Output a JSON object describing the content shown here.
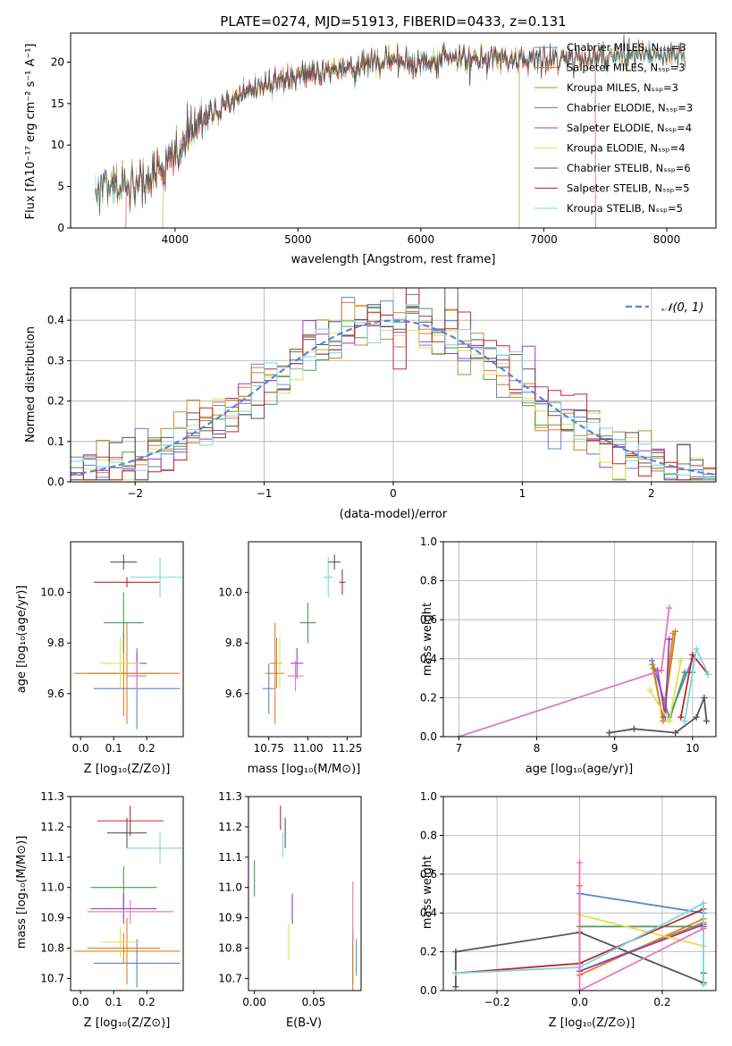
{
  "colors": {
    "series": [
      "#5b84d6",
      "#e37e2a",
      "#c08a1e",
      "#4a9a55",
      "#9a3cc2",
      "#e0e050",
      "#555555",
      "#c0282c",
      "#7ad6e0"
    ],
    "pink": "#e377c2",
    "dash_normal": "#5b84d6",
    "grid": "#b0b0b0"
  },
  "chart_data": [
    {
      "id": "spectrum",
      "type": "line",
      "title": "PLATE=0274, MJD=51913, FIBERID=0433, z=0.131",
      "xlabel": "wavelength [Angstrom, rest frame]",
      "ylabel": "Flux [fλ10⁻¹⁷ erg cm⁻² s⁻¹ A⁻¹]",
      "xlim": [
        3150,
        8400
      ],
      "ylim": [
        0,
        23.5
      ],
      "xticks": [
        4000,
        5000,
        6000,
        7000,
        8000
      ],
      "yticks": [
        0,
        5,
        10,
        15,
        20
      ],
      "legend_position": "top-right",
      "legend": [
        "Chabrier MILES, Nₛₛₚ=3",
        "Salpeter MILES, Nₛₛₚ=3",
        "Kroupa MILES, Nₛₛₚ=3",
        "Chabrier ELODIE, Nₛₛₚ=3",
        "Salpeter ELODIE, Nₛₛₚ=4",
        "Kroupa ELODIE, Nₛₛₚ=4",
        "Chabrier STELIB, Nₛₛₚ=6",
        "Salpeter STELIB, Nₛₛₚ=5",
        "Kroupa STELIB, Nₛₛₚ=5"
      ],
      "spectrum_trend": {
        "x": [
          3350,
          3500,
          3700,
          3800,
          3900,
          4000,
          4100,
          4300,
          4500,
          4800,
          5000,
          5200,
          5500,
          5800,
          6000,
          6200,
          6500,
          6800,
          7000,
          7200,
          7500,
          7800,
          8100
        ],
        "y": [
          4.3,
          5.0,
          5.3,
          6.5,
          7.3,
          8.4,
          11.3,
          13.8,
          15.8,
          17.5,
          18.0,
          18.8,
          19.5,
          20.0,
          19.9,
          20.3,
          20.5,
          20.3,
          20.4,
          20.5,
          20.6,
          20.8,
          20.8
        ]
      },
      "model_ranges": [
        [
          3350,
          8150
        ],
        [
          3350,
          8150
        ],
        [
          3350,
          8150
        ],
        [
          3900,
          6800
        ],
        [
          3900,
          6800
        ],
        [
          3900,
          6800
        ],
        [
          3350,
          8150
        ],
        [
          3600,
          7420
        ],
        [
          3350,
          8150
        ]
      ]
    },
    {
      "id": "residual-histogram",
      "type": "line",
      "xlabel": "(data-model)/error",
      "ylabel": "Normed distribution",
      "xlim": [
        -2.5,
        2.5
      ],
      "ylim": [
        0,
        0.48
      ],
      "xticks": [
        -2,
        -1,
        0,
        1,
        2
      ],
      "xtick_labels": [
        "−2",
        "−1",
        "0",
        "1",
        "2"
      ],
      "yticks": [
        0.0,
        0.1,
        0.2,
        0.3,
        0.4
      ],
      "ytick_labels": [
        "0.0",
        "0.1",
        "0.2",
        "0.3",
        "0.4"
      ],
      "legend": [
        "𝒩(0, 1)"
      ],
      "legend_position": "top-right",
      "bin_width": 0.1,
      "reference_curve": "normal(0,1)"
    },
    {
      "id": "age-vs-Z",
      "type": "scatter",
      "xlabel": "Z [log₁₀(Z/Z⊙)]",
      "ylabel": "age  [log₁₀(age/yr)]",
      "xlim": [
        -0.03,
        0.31
      ],
      "ylim": [
        9.43,
        10.2
      ],
      "xticks": [
        0.0,
        0.1,
        0.2
      ],
      "xtick_labels": [
        "0.0",
        "0.1",
        "0.2"
      ],
      "yticks": [
        9.6,
        9.8,
        10.0
      ],
      "ytick_labels": [
        "9.6",
        "9.8",
        "10.0"
      ],
      "points": [
        {
          "color": 0,
          "x": 0.17,
          "y": 9.62,
          "xerr": 0.13,
          "yerr": 0.16
        },
        {
          "color": 1,
          "x": 0.14,
          "y": 9.68,
          "xerr": 0.16,
          "yerr": 0.2
        },
        {
          "color": 2,
          "x": 0.13,
          "y": 9.68,
          "xerr": 0.11,
          "yerr": 0.17
        },
        {
          "color": 3,
          "x": 0.13,
          "y": 9.88,
          "xerr": 0.06,
          "yerr": 0.12
        },
        {
          "color": 4,
          "x": 0.17,
          "y": 9.72,
          "xerr": 0.03,
          "yerr": 0.04
        },
        {
          "color": 5,
          "x": 0.12,
          "y": 9.72,
          "xerr": 0.06,
          "yerr": 0.1
        },
        {
          "color": 6,
          "x": 0.13,
          "y": 10.12,
          "xerr": 0.04,
          "yerr": 0.03
        },
        {
          "color": 7,
          "x": 0.14,
          "y": 10.04,
          "xerr": 0.1,
          "yerr": 0.02
        },
        {
          "color": 8,
          "x": 0.24,
          "y": 10.06,
          "xerr": 0.09,
          "yerr": 0.08
        },
        {
          "color": "pink",
          "x": 0.17,
          "y": 9.67,
          "xerr": 0.03,
          "yerr": 0.06
        }
      ]
    },
    {
      "id": "age-vs-mass",
      "type": "scatter",
      "xlabel": "mass [log₁₀(M/M⊙)]",
      "xlim": [
        10.62,
        11.34
      ],
      "ylim": [
        9.43,
        10.2
      ],
      "xticks": [
        10.75,
        11.0,
        11.25
      ],
      "xtick_labels": [
        "10.75",
        "11.00",
        "11.25"
      ],
      "yticks": [
        9.6,
        9.8,
        10.0
      ],
      "ytick_labels": [
        "9.6",
        "9.8",
        "10.0"
      ],
      "points": [
        {
          "color": 0,
          "x": 10.75,
          "y": 9.62,
          "xerr": 0.04,
          "yerr": 0.1
        },
        {
          "color": 1,
          "x": 10.79,
          "y": 9.68,
          "xerr": 0.06,
          "yerr": 0.2
        },
        {
          "color": 2,
          "x": 10.8,
          "y": 9.72,
          "xerr": 0.04,
          "yerr": 0.1
        },
        {
          "color": 3,
          "x": 11.0,
          "y": 9.88,
          "xerr": 0.05,
          "yerr": 0.08
        },
        {
          "color": 4,
          "x": 10.93,
          "y": 9.72,
          "xerr": 0.04,
          "yerr": 0.06
        },
        {
          "color": 5,
          "x": 10.82,
          "y": 9.72,
          "xerr": 0.02,
          "yerr": 0.1
        },
        {
          "color": 6,
          "x": 11.17,
          "y": 10.12,
          "xerr": 0.04,
          "yerr": 0.03
        },
        {
          "color": 7,
          "x": 11.22,
          "y": 10.04,
          "xerr": 0.02,
          "yerr": 0.05
        },
        {
          "color": 8,
          "x": 11.13,
          "y": 10.06,
          "xerr": 0.03,
          "yerr": 0.08
        },
        {
          "color": "pink",
          "x": 10.92,
          "y": 9.67,
          "xerr": 0.05,
          "yerr": 0.06
        }
      ]
    },
    {
      "id": "mass-weight-vs-age",
      "type": "line",
      "xlabel": "age  [log₁₀(age/yr)]",
      "ylabel": "mass weight",
      "xlim": [
        6.8,
        10.3
      ],
      "ylim": [
        0,
        1.0
      ],
      "xticks": [
        7,
        8,
        9,
        10
      ],
      "xtick_labels": [
        "7",
        "8",
        "9",
        "10"
      ],
      "yticks": [
        0.0,
        0.2,
        0.4,
        0.6,
        0.8,
        1.0
      ],
      "ytick_labels": [
        "0.0",
        "0.2",
        "0.4",
        "0.6",
        "0.8",
        "1.0"
      ],
      "series": [
        {
          "color": 0,
          "x": [
            9.48,
            9.7,
            10.0
          ],
          "y": [
            0.39,
            0.1,
            0.4
          ]
        },
        {
          "color": 1,
          "x": [
            9.48,
            9.62,
            9.75
          ],
          "y": [
            0.37,
            0.1,
            0.53
          ]
        },
        {
          "color": 2,
          "x": [
            9.5,
            9.62,
            9.78
          ],
          "y": [
            0.35,
            0.08,
            0.54
          ]
        },
        {
          "color": 3,
          "x": [
            9.7,
            9.9,
            10.0
          ],
          "y": [
            0.08,
            0.33,
            0.33
          ]
        },
        {
          "color": 4,
          "x": [
            9.55,
            9.65,
            9.7
          ],
          "y": [
            0.34,
            0.1,
            0.5
          ]
        },
        {
          "color": 5,
          "x": [
            9.45,
            9.7,
            9.85
          ],
          "y": [
            0.24,
            0.08,
            0.39
          ]
        },
        {
          "color": 6,
          "x": [
            8.93,
            9.25,
            9.78,
            10.05,
            10.15,
            10.18
          ],
          "y": [
            0.02,
            0.04,
            0.02,
            0.1,
            0.2,
            0.08
          ]
        },
        {
          "color": 7,
          "x": [
            9.85,
            10.0,
            10.2
          ],
          "y": [
            0.1,
            0.42,
            0.32
          ]
        },
        {
          "color": 8,
          "x": [
            9.9,
            10.05,
            10.2
          ],
          "y": [
            0.08,
            0.45,
            0.32
          ]
        },
        {
          "color": "pink",
          "x": [
            7.0,
            9.6,
            9.7
          ],
          "y": [
            0.0,
            0.34,
            0.66
          ]
        }
      ]
    },
    {
      "id": "mass-vs-Z",
      "type": "scatter",
      "xlabel": "Z [log₁₀(Z/Z⊙)]",
      "ylabel": "mass [log₁₀(M/M⊙)]",
      "xlim": [
        -0.03,
        0.31
      ],
      "ylim": [
        10.66,
        11.3
      ],
      "xticks": [
        0.0,
        0.1,
        0.2
      ],
      "xtick_labels": [
        "0.0",
        "0.1",
        "0.2"
      ],
      "yticks": [
        10.7,
        10.8,
        10.9,
        11.0,
        11.1,
        11.2,
        11.3
      ],
      "ytick_labels": [
        "10.7",
        "10.8",
        "10.9",
        "11.0",
        "11.1",
        "11.2",
        "11.3"
      ],
      "points": [
        {
          "color": 0,
          "x": 0.17,
          "y": 10.75,
          "xerr": 0.13,
          "yerr": 0.08
        },
        {
          "color": 1,
          "x": 0.14,
          "y": 10.79,
          "xerr": 0.16,
          "yerr": 0.11
        },
        {
          "color": 2,
          "x": 0.13,
          "y": 10.8,
          "xerr": 0.11,
          "yerr": 0.05
        },
        {
          "color": 3,
          "x": 0.13,
          "y": 11.0,
          "xerr": 0.1,
          "yerr": 0.07
        },
        {
          "color": 4,
          "x": 0.13,
          "y": 10.93,
          "xerr": 0.1,
          "yerr": 0.05
        },
        {
          "color": 5,
          "x": 0.12,
          "y": 10.82,
          "xerr": 0.06,
          "yerr": 0.05
        },
        {
          "color": 6,
          "x": 0.14,
          "y": 11.18,
          "xerr": 0.06,
          "yerr": 0.05
        },
        {
          "color": 7,
          "x": 0.15,
          "y": 11.22,
          "xerr": 0.1,
          "yerr": 0.05
        },
        {
          "color": 8,
          "x": 0.24,
          "y": 11.13,
          "xerr": 0.1,
          "yerr": 0.05
        },
        {
          "color": "pink",
          "x": 0.15,
          "y": 10.92,
          "xerr": 0.13,
          "yerr": 0.04
        }
      ]
    },
    {
      "id": "mass-vs-EBV",
      "type": "scatter",
      "xlabel": "E(B-V)",
      "xlim": [
        -0.005,
        0.09
      ],
      "ylim": [
        10.66,
        11.3
      ],
      "xticks": [
        0.0,
        0.05
      ],
      "xtick_labels": [
        "0.00",
        "0.05"
      ],
      "yticks": [
        10.7,
        10.8,
        10.9,
        11.0,
        11.1,
        11.2,
        11.3
      ],
      "ytick_labels": [
        "10.7",
        "10.8",
        "10.9",
        "11.0",
        "11.1",
        "11.2",
        "11.3"
      ],
      "points": [
        {
          "color": 0,
          "x": 0.086,
          "y": 10.77,
          "xerr": 0,
          "yerr": 0.06
        },
        {
          "color": 1,
          "x": 0.083,
          "y": 10.75,
          "xerr": 0,
          "yerr": 0.09
        },
        {
          "color": 2,
          "x": 0.083,
          "y": 10.77,
          "xerr": 0,
          "yerr": 0.09
        },
        {
          "color": 3,
          "x": 0.0,
          "y": 11.03,
          "xerr": 0,
          "yerr": 0.06
        },
        {
          "color": 4,
          "x": 0.032,
          "y": 10.93,
          "xerr": 0,
          "yerr": 0.05
        },
        {
          "color": 5,
          "x": 0.029,
          "y": 10.82,
          "xerr": 0,
          "yerr": 0.06
        },
        {
          "color": 6,
          "x": 0.026,
          "y": 11.18,
          "xerr": 0,
          "yerr": 0.05
        },
        {
          "color": 7,
          "x": 0.022,
          "y": 11.23,
          "xerr": 0,
          "yerr": 0.04
        },
        {
          "color": 8,
          "x": 0.024,
          "y": 11.14,
          "xerr": 0,
          "yerr": 0.04
        },
        {
          "color": "pink",
          "x": 0.083,
          "y": 10.92,
          "xerr": 0,
          "yerr": 0.1
        }
      ]
    },
    {
      "id": "mass-weight-vs-Z",
      "type": "line",
      "xlabel": "Z [log₁₀(Z/Z⊙)]",
      "ylabel": "mass weight",
      "xlim": [
        -0.33,
        0.33
      ],
      "ylim": [
        0,
        1.0
      ],
      "xticks": [
        -0.2,
        0.0,
        0.2
      ],
      "xtick_labels": [
        "−0.2",
        "0.0",
        "0.2"
      ],
      "yticks": [
        0.0,
        0.2,
        0.4,
        0.6,
        0.8,
        1.0
      ],
      "ytick_labels": [
        "0.0",
        "0.2",
        "0.4",
        "0.6",
        "0.8",
        "1.0"
      ],
      "series": [
        {
          "color": 0,
          "x": [
            0.0,
            0.3
          ],
          "y": [
            0.5,
            0.4
          ]
        },
        {
          "color": 1,
          "x": [
            0.0,
            0.0,
            0.3
          ],
          "y": [
            0.54,
            0.08,
            0.37
          ]
        },
        {
          "color": 2,
          "x": [
            0.0,
            0.3
          ],
          "y": [
            0.1,
            0.35
          ]
        },
        {
          "color": 3,
          "x": [
            0.0,
            0.3
          ],
          "y": [
            0.33,
            0.33
          ]
        },
        {
          "color": 4,
          "x": [
            0.0,
            0.3
          ],
          "y": [
            0.1,
            0.34
          ]
        },
        {
          "color": 5,
          "x": [
            0.0,
            0.3
          ],
          "y": [
            0.39,
            0.23
          ]
        },
        {
          "color": 6,
          "x": [
            -0.3,
            -0.3,
            0.0,
            0.3,
            0.3
          ],
          "y": [
            0.02,
            0.2,
            0.3,
            0.04,
            0.09
          ]
        },
        {
          "color": 7,
          "x": [
            -0.3,
            0.0,
            0.3
          ],
          "y": [
            0.09,
            0.14,
            0.42
          ]
        },
        {
          "color": 8,
          "x": [
            -0.3,
            0.0,
            0.3,
            0.3
          ],
          "y": [
            0.09,
            0.12,
            0.45,
            0.03
          ]
        },
        {
          "color": "pink",
          "x": [
            0.0,
            0.0,
            0.3
          ],
          "y": [
            0.66,
            0.0,
            0.32
          ]
        }
      ]
    }
  ]
}
